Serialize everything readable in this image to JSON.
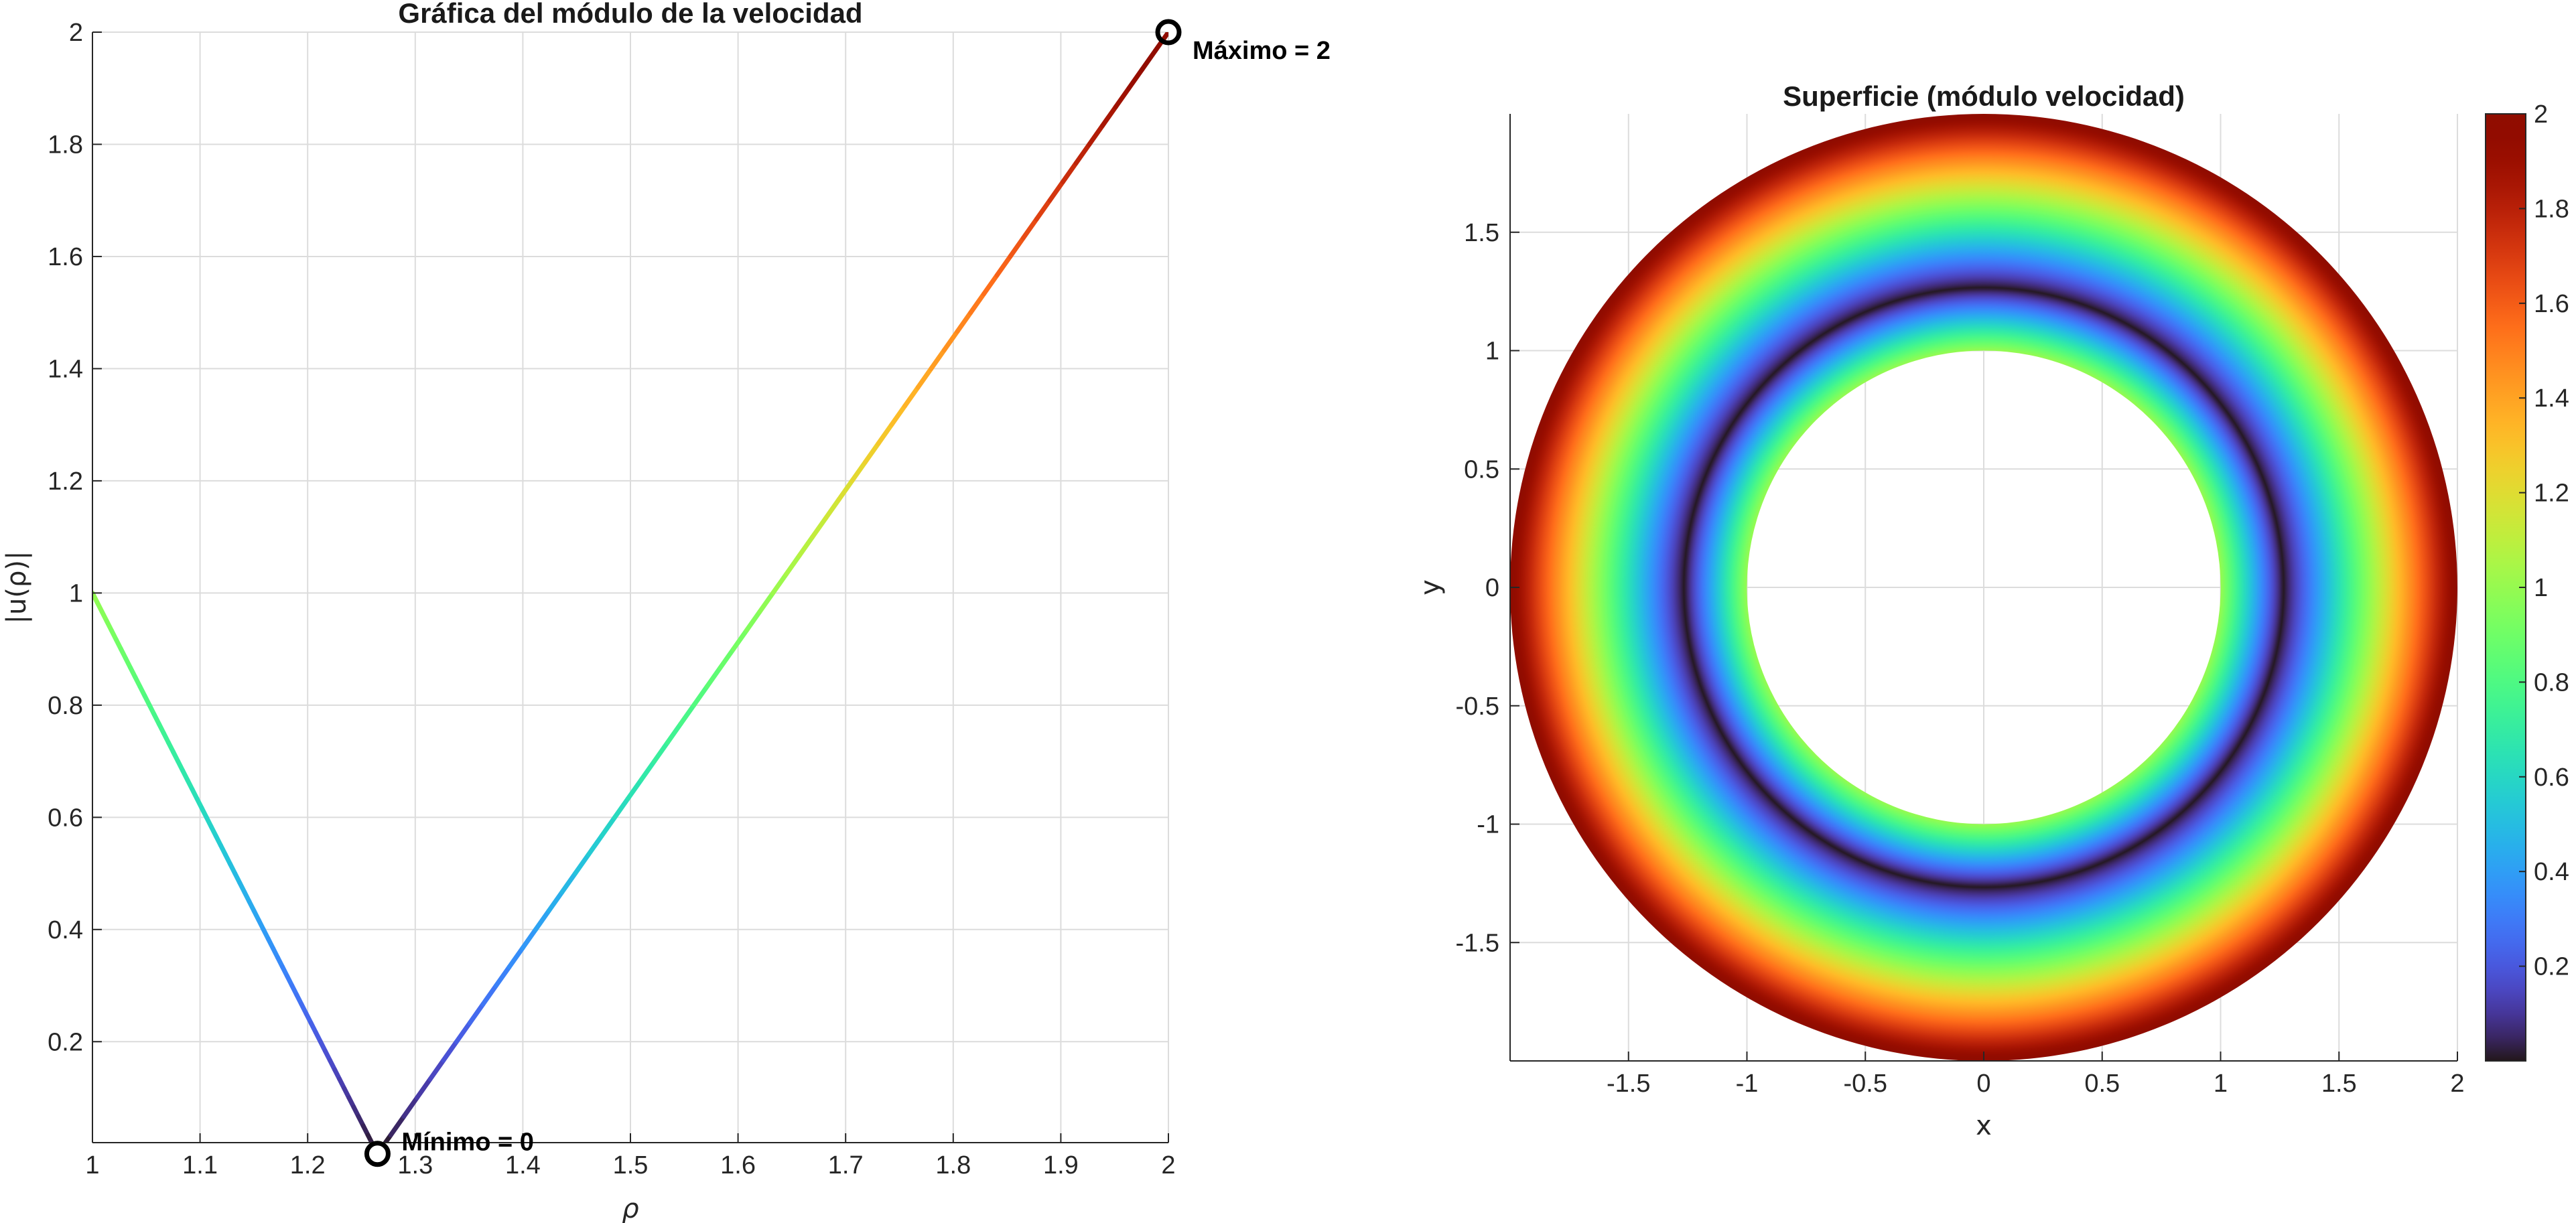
{
  "chart_data": [
    {
      "type": "line",
      "title": "Gráfica del módulo de la velocidad",
      "xlabel": "ρ",
      "ylabel": "|u(ρ)|",
      "xlim": [
        1,
        2
      ],
      "ylim": [
        0,
        2
      ],
      "x_ticks": [
        "1",
        "1.1",
        "1.2",
        "1.3",
        "1.4",
        "1.5",
        "1.6",
        "1.7",
        "1.8",
        "1.9",
        "2"
      ],
      "y_ticks": [
        "0.2",
        "0.4",
        "0.6",
        "0.8",
        "1",
        "1.2",
        "1.4",
        "1.6",
        "1.8",
        "2"
      ],
      "grid": true,
      "colormap": "turbo",
      "x": [
        1,
        1.2649,
        2
      ],
      "y": [
        1,
        0,
        2
      ],
      "annotations": [
        {
          "label": "Mínimo = 0",
          "x": 1.2649,
          "y": 0
        },
        {
          "label": "Máximo = 2",
          "x": 2,
          "y": 2
        }
      ]
    },
    {
      "type": "heatmap",
      "title": "Superficie (módulo velocidad)",
      "xlabel": "x",
      "ylabel": "y",
      "xlim": [
        -2,
        2
      ],
      "ylim": [
        -2,
        2
      ],
      "x_ticks": [
        "-1.5",
        "-1",
        "-0.5",
        "0",
        "0.5",
        "1",
        "1.5",
        "2"
      ],
      "y_ticks": [
        "1.5",
        "1",
        "0.5",
        "0",
        "-0.5",
        "-1",
        "-1.5"
      ],
      "grid": true,
      "inner_radius": 1,
      "outer_radius": 2,
      "zero_radius": 1.2649,
      "colorbar": {
        "range": [
          0,
          2
        ],
        "ticks": [
          "0.2",
          "0.4",
          "0.6",
          "0.8",
          "1",
          "1.2",
          "1.4",
          "1.6",
          "1.8",
          "2"
        ]
      }
    }
  ]
}
